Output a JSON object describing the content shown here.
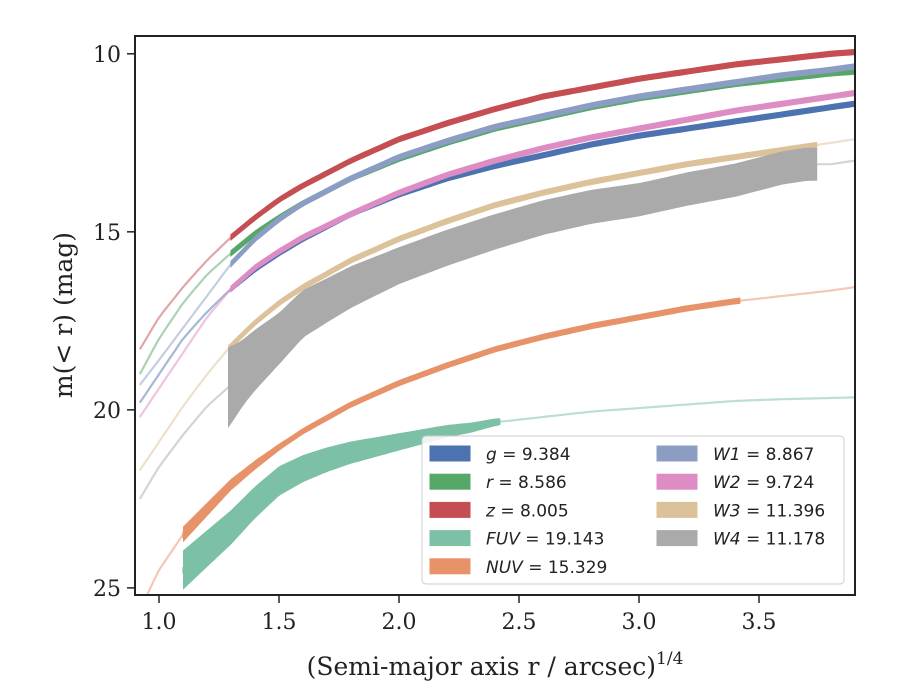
{
  "chart_data": {
    "type": "line",
    "xlabel": "(Semi-major axis r / arcsec)",
    "xlabel_power": "1/4",
    "ylabel": "m(< r) (mag)",
    "xlim": [
      0.9,
      3.9
    ],
    "ylim": [
      25.2,
      9.5
    ],
    "y_inverted": true,
    "xticks": [
      1.0,
      1.5,
      2.0,
      2.5,
      3.0,
      3.5
    ],
    "yticks": [
      10,
      15,
      20,
      25
    ],
    "grid": false,
    "legend_placement": "lower-right",
    "legend_columns": 2,
    "series": [
      {
        "name": "g",
        "total": "9.384",
        "color": "#4c72b0",
        "x": [
          0.92,
          1.0,
          1.1,
          1.2,
          1.3,
          1.4,
          1.5,
          1.6,
          1.8,
          2.0,
          2.2,
          2.4,
          2.6,
          2.8,
          3.0,
          3.2,
          3.4,
          3.6,
          3.8,
          3.9
        ],
        "y": [
          19.8,
          19.0,
          18.0,
          17.25,
          16.6,
          16.05,
          15.6,
          15.2,
          14.5,
          13.95,
          13.5,
          13.15,
          12.85,
          12.55,
          12.3,
          12.1,
          11.9,
          11.7,
          11.5,
          11.4
        ],
        "band": [
          [
            1.3,
            3.9
          ]
        ]
      },
      {
        "name": "r",
        "total": "8.586",
        "color": "#55a868",
        "x": [
          0.92,
          1.0,
          1.1,
          1.2,
          1.3,
          1.4,
          1.5,
          1.6,
          1.8,
          2.0,
          2.2,
          2.4,
          2.6,
          2.8,
          3.0,
          3.2,
          3.4,
          3.6,
          3.8,
          3.9
        ],
        "y": [
          19.0,
          18.0,
          17.0,
          16.2,
          15.6,
          15.05,
          14.6,
          14.2,
          13.5,
          12.95,
          12.5,
          12.1,
          11.8,
          11.5,
          11.25,
          11.05,
          10.85,
          10.7,
          10.55,
          10.5
        ],
        "band": [
          [
            1.3,
            3.9
          ]
        ]
      },
      {
        "name": "z",
        "total": "8.005",
        "color": "#c44e52",
        "x": [
          0.92,
          1.0,
          1.1,
          1.2,
          1.3,
          1.4,
          1.5,
          1.6,
          1.8,
          2.0,
          2.2,
          2.4,
          2.6,
          2.8,
          3.0,
          3.2,
          3.4,
          3.6,
          3.8,
          3.9
        ],
        "y": [
          18.3,
          17.4,
          16.55,
          15.8,
          15.15,
          14.6,
          14.1,
          13.7,
          13.0,
          12.4,
          11.95,
          11.55,
          11.2,
          10.95,
          10.7,
          10.5,
          10.3,
          10.15,
          10.0,
          9.95
        ],
        "band": [
          [
            1.3,
            3.9
          ]
        ]
      },
      {
        "name": "FUV",
        "total": "19.143",
        "color": "#7cc0a6",
        "x": [
          1.1,
          1.2,
          1.3,
          1.4,
          1.5,
          1.6,
          1.7,
          1.8,
          1.9,
          2.0,
          2.1,
          2.2,
          2.3,
          2.4,
          2.6,
          2.8,
          3.0,
          3.2,
          3.4,
          3.6,
          3.9
        ],
        "y": [
          24.5,
          23.9,
          23.3,
          22.6,
          22.0,
          21.65,
          21.4,
          21.2,
          21.05,
          20.9,
          20.75,
          20.6,
          20.5,
          20.35,
          20.2,
          20.05,
          19.95,
          19.85,
          19.75,
          19.7,
          19.65
        ],
        "band": [
          [
            1.1,
            2.42
          ]
        ]
      },
      {
        "name": "NUV",
        "total": "15.329",
        "color": "#e8926a",
        "x": [
          0.95,
          1.0,
          1.1,
          1.2,
          1.3,
          1.4,
          1.5,
          1.6,
          1.8,
          2.0,
          2.2,
          2.4,
          2.6,
          2.8,
          3.0,
          3.2,
          3.4,
          3.6,
          3.8,
          3.9
        ],
        "y": [
          25.2,
          24.5,
          23.5,
          22.8,
          22.1,
          21.55,
          21.05,
          20.6,
          19.85,
          19.25,
          18.75,
          18.3,
          17.95,
          17.65,
          17.4,
          17.15,
          16.95,
          16.8,
          16.65,
          16.55
        ],
        "band": [
          [
            1.1,
            3.42
          ]
        ]
      },
      {
        "name": "W1",
        "total": "8.867",
        "color": "#8c9dc4",
        "x": [
          0.92,
          1.0,
          1.1,
          1.2,
          1.3,
          1.4,
          1.5,
          1.6,
          1.8,
          2.0,
          2.2,
          2.4,
          2.6,
          2.8,
          3.0,
          3.2,
          3.4,
          3.6,
          3.8,
          3.9
        ],
        "y": [
          19.3,
          18.6,
          17.7,
          16.8,
          15.9,
          15.2,
          14.65,
          14.2,
          13.5,
          12.9,
          12.45,
          12.05,
          11.75,
          11.45,
          11.2,
          11.0,
          10.8,
          10.6,
          10.45,
          10.35
        ],
        "band": [
          [
            1.3,
            3.9
          ]
        ]
      },
      {
        "name": "W2",
        "total": "9.724",
        "color": "#dd8cc4",
        "x": [
          0.92,
          1.0,
          1.1,
          1.2,
          1.3,
          1.4,
          1.5,
          1.6,
          1.8,
          2.0,
          2.2,
          2.4,
          2.6,
          2.8,
          3.0,
          3.2,
          3.4,
          3.6,
          3.8,
          3.9
        ],
        "y": [
          20.2,
          19.4,
          18.4,
          17.4,
          16.6,
          16.0,
          15.55,
          15.15,
          14.5,
          13.9,
          13.4,
          13.0,
          12.65,
          12.35,
          12.1,
          11.85,
          11.6,
          11.4,
          11.2,
          11.1
        ],
        "band": [
          [
            1.3,
            3.9
          ]
        ]
      },
      {
        "name": "W3",
        "total": "11.396",
        "color": "#dcc29b",
        "x": [
          0.92,
          1.0,
          1.1,
          1.2,
          1.3,
          1.4,
          1.5,
          1.6,
          1.8,
          2.0,
          2.2,
          2.4,
          2.6,
          2.8,
          3.0,
          3.2,
          3.4,
          3.6,
          3.8,
          3.9
        ],
        "y": [
          21.7,
          20.9,
          19.9,
          19.0,
          18.2,
          17.55,
          17.0,
          16.55,
          15.8,
          15.2,
          14.7,
          14.25,
          13.9,
          13.6,
          13.35,
          13.1,
          12.9,
          12.7,
          12.5,
          12.4
        ],
        "band": [
          [
            1.29,
            3.74
          ]
        ]
      },
      {
        "name": "W4",
        "total": "11.178",
        "color": "#aaaaaa",
        "x": [
          0.92,
          1.0,
          1.1,
          1.2,
          1.3,
          1.4,
          1.5,
          1.6,
          1.8,
          2.0,
          2.2,
          2.4,
          2.6,
          2.8,
          3.0,
          3.2,
          3.4,
          3.6,
          3.7,
          3.8,
          3.9
        ],
        "y": [
          22.5,
          21.6,
          20.7,
          19.9,
          19.3,
          18.6,
          18.0,
          17.3,
          16.55,
          15.95,
          15.45,
          15.0,
          14.6,
          14.3,
          14.1,
          13.8,
          13.55,
          13.2,
          13.1,
          13.1,
          13.0
        ],
        "band": [
          [
            1.29,
            3.74
          ]
        ],
        "band_width": [
          [
            1.29,
            1.1
          ],
          [
            1.35,
            0.9
          ],
          [
            1.5,
            0.7
          ],
          [
            1.7,
            0.6
          ],
          [
            2.0,
            0.5
          ],
          [
            3.0,
            0.45
          ],
          [
            3.74,
            0.45
          ]
        ]
      }
    ]
  }
}
